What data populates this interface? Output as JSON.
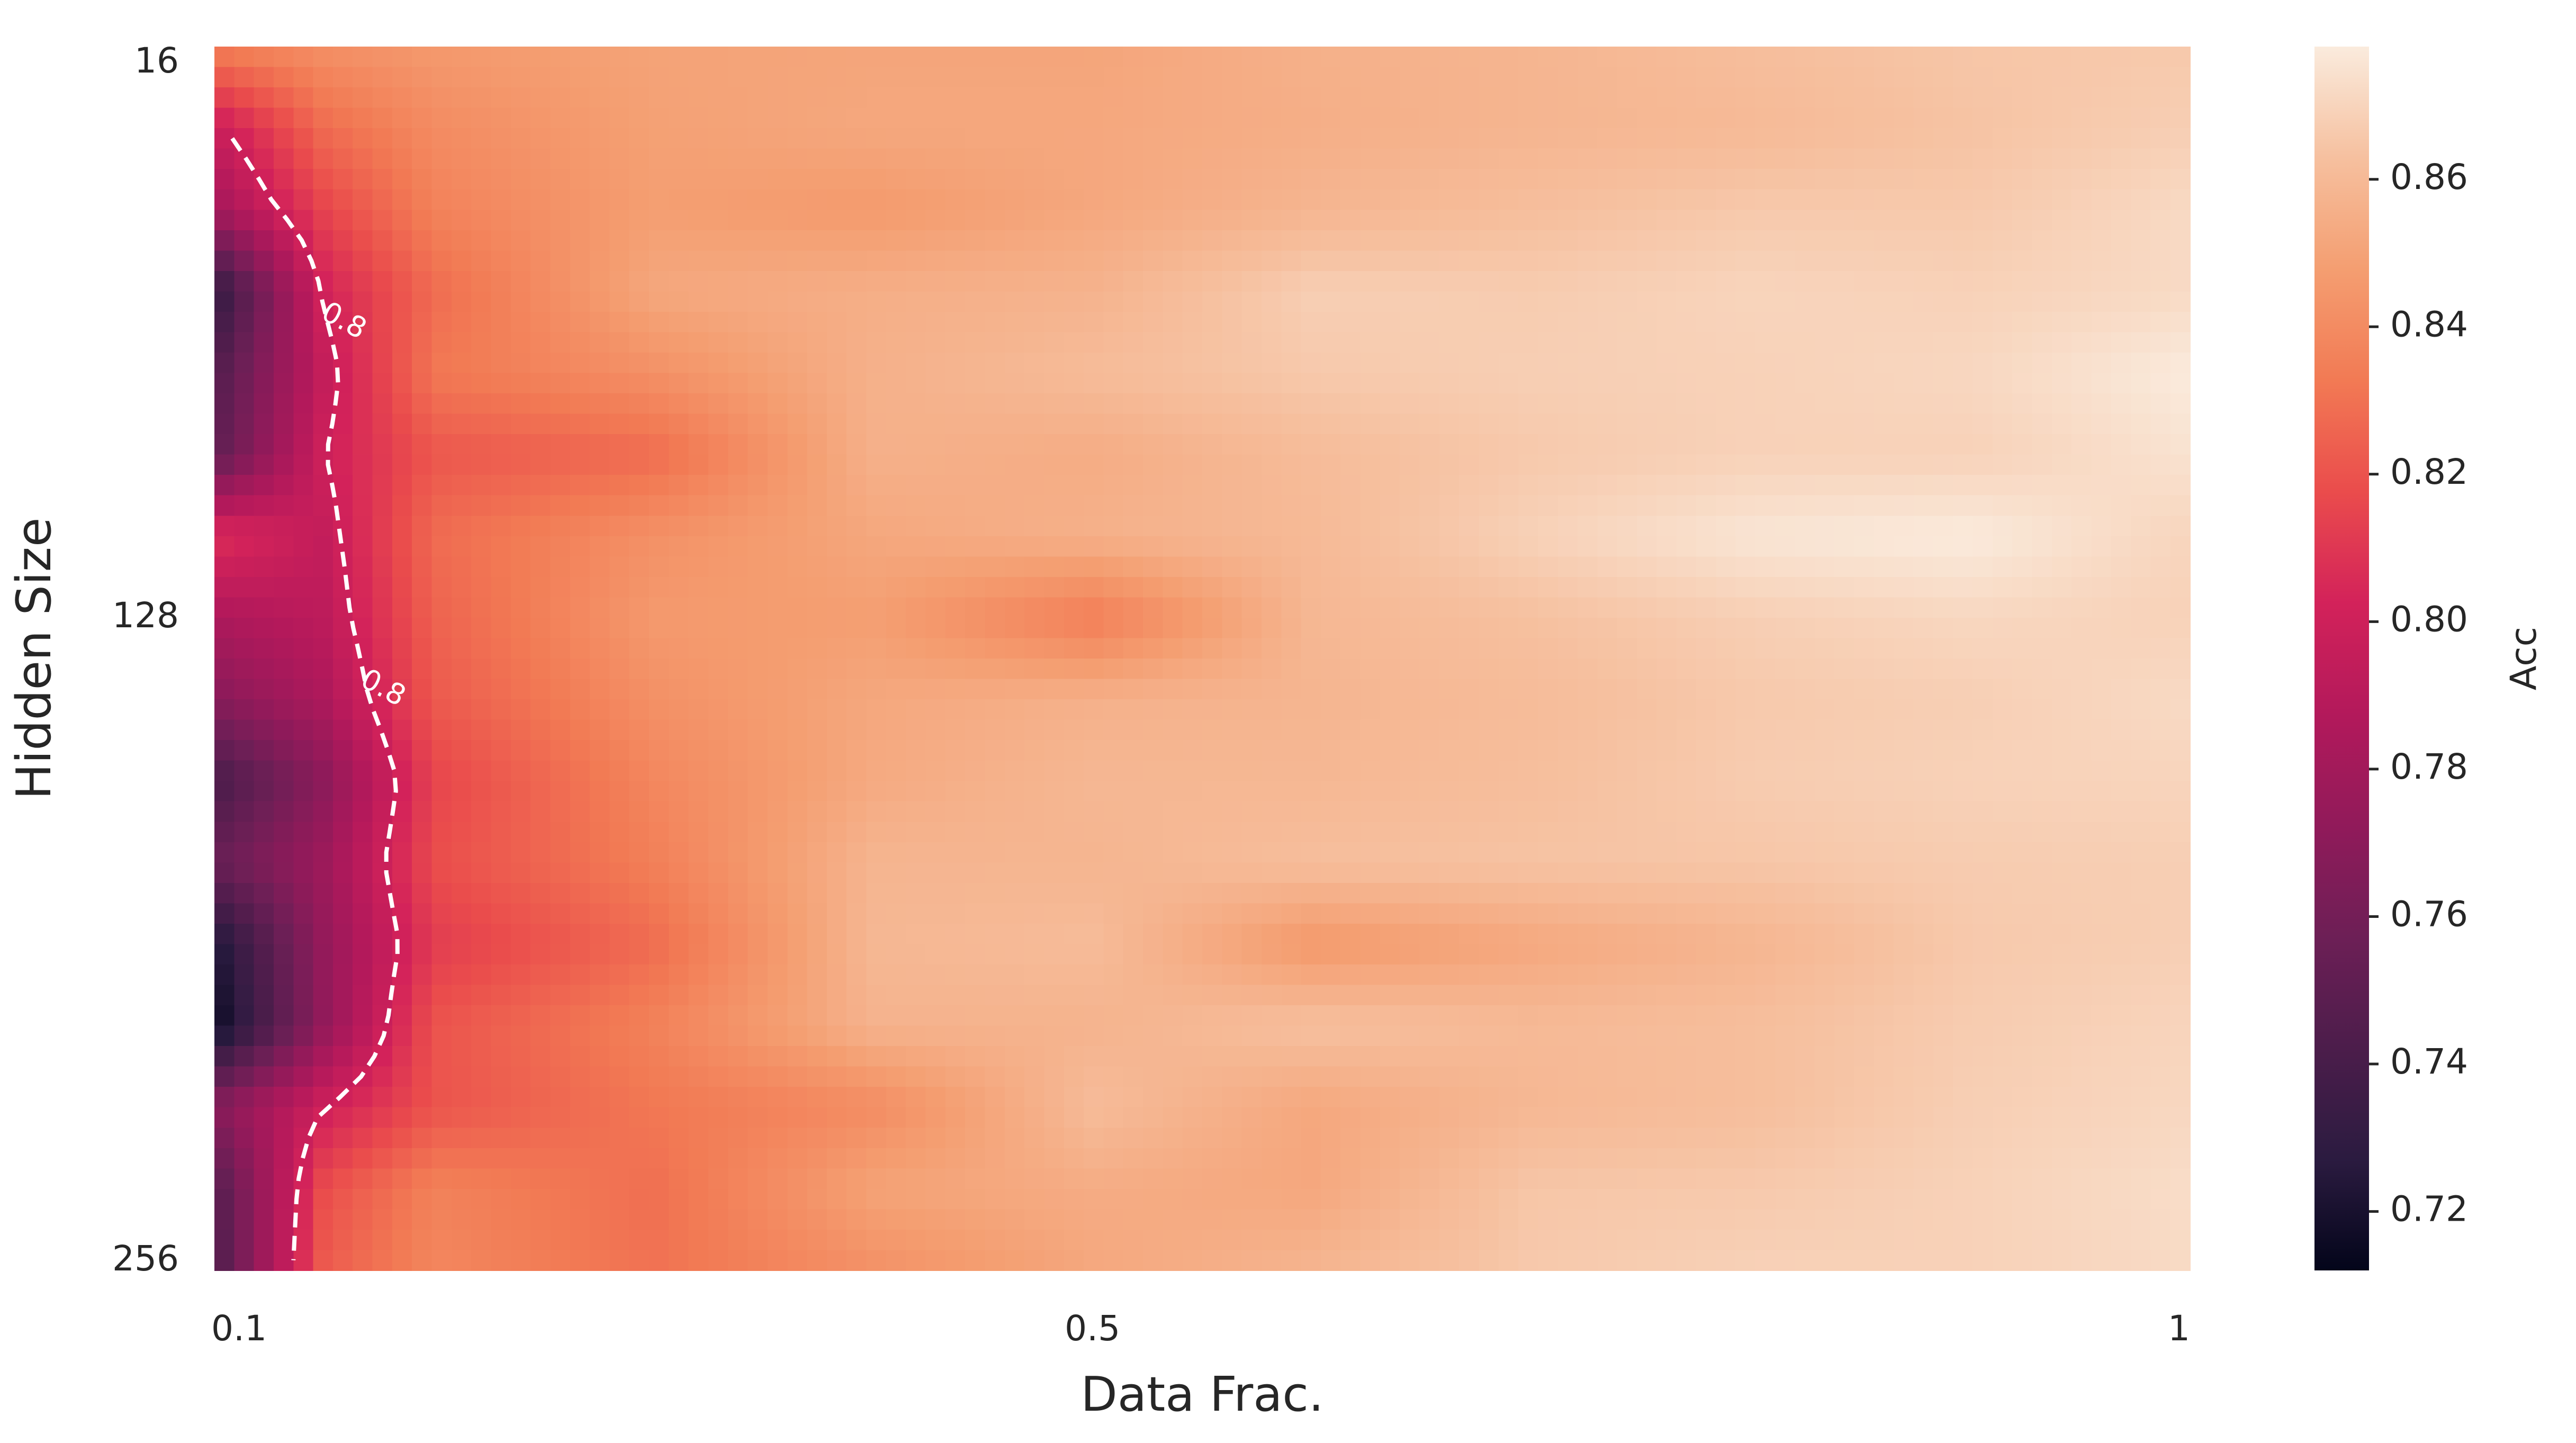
{
  "chart_data": {
    "type": "heatmap",
    "xlabel": "Data Frac.",
    "ylabel": "Hidden Size",
    "colorbar_label": "Acc",
    "x_ticks": [
      {
        "label": "0.1",
        "value": 0.1
      },
      {
        "label": "0.5",
        "value": 0.5
      },
      {
        "label": "1",
        "value": 1.0
      }
    ],
    "y_ticks": [
      {
        "label": "16",
        "value": 16
      },
      {
        "label": "128",
        "value": 128
      },
      {
        "label": "256",
        "value": 256
      }
    ],
    "xlim": [
      0.1,
      1.0
    ],
    "ylim": [
      16,
      256
    ],
    "color_range": [
      0.712,
      0.878
    ],
    "colorbar_ticks": [
      "0.72",
      "0.74",
      "0.76",
      "0.78",
      "0.80",
      "0.82",
      "0.84",
      "0.86"
    ],
    "colormap": "rocket",
    "colormap_stops": [
      "#03051a",
      "#2b1b40",
      "#4c1d4b",
      "#6d1f56",
      "#911a5a",
      "#b3195b",
      "#d3225a",
      "#ea4c4c",
      "#f27a54",
      "#f49e71",
      "#f6c09f",
      "#faebdd"
    ],
    "x": [
      0.1,
      0.15,
      0.2,
      0.3,
      0.4,
      0.5,
      0.6,
      0.7,
      0.8,
      0.9,
      1.0
    ],
    "y": [
      16,
      32,
      48,
      64,
      80,
      96,
      112,
      128,
      144,
      160,
      176,
      192,
      208,
      224,
      240,
      256
    ],
    "values": [
      [
        0.835,
        0.842,
        0.846,
        0.85,
        0.851,
        0.851,
        0.856,
        0.858,
        0.862,
        0.865,
        0.866
      ],
      [
        0.797,
        0.828,
        0.84,
        0.849,
        0.852,
        0.852,
        0.855,
        0.858,
        0.86,
        0.864,
        0.868
      ],
      [
        0.78,
        0.815,
        0.836,
        0.848,
        0.846,
        0.852,
        0.858,
        0.862,
        0.866,
        0.866,
        0.872
      ],
      [
        0.728,
        0.802,
        0.828,
        0.852,
        0.855,
        0.857,
        0.868,
        0.867,
        0.87,
        0.869,
        0.872
      ],
      [
        0.745,
        0.795,
        0.832,
        0.842,
        0.856,
        0.861,
        0.866,
        0.868,
        0.869,
        0.871,
        0.878
      ],
      [
        0.75,
        0.8,
        0.821,
        0.828,
        0.856,
        0.854,
        0.861,
        0.866,
        0.869,
        0.869,
        0.875
      ],
      [
        0.808,
        0.795,
        0.828,
        0.842,
        0.852,
        0.856,
        0.86,
        0.869,
        0.876,
        0.878,
        0.87
      ],
      [
        0.785,
        0.792,
        0.825,
        0.846,
        0.848,
        0.834,
        0.859,
        0.863,
        0.868,
        0.871,
        0.869
      ],
      [
        0.768,
        0.785,
        0.822,
        0.842,
        0.852,
        0.856,
        0.858,
        0.861,
        0.866,
        0.868,
        0.872
      ],
      [
        0.74,
        0.77,
        0.815,
        0.838,
        0.853,
        0.859,
        0.859,
        0.862,
        0.867,
        0.869,
        0.87
      ],
      [
        0.755,
        0.778,
        0.818,
        0.835,
        0.858,
        0.858,
        0.862,
        0.864,
        0.865,
        0.867,
        0.868
      ],
      [
        0.722,
        0.774,
        0.812,
        0.828,
        0.859,
        0.861,
        0.845,
        0.852,
        0.858,
        0.866,
        0.868
      ],
      [
        0.714,
        0.773,
        0.82,
        0.836,
        0.857,
        0.857,
        0.863,
        0.86,
        0.862,
        0.867,
        0.87
      ],
      [
        0.768,
        0.8,
        0.82,
        0.832,
        0.84,
        0.861,
        0.852,
        0.859,
        0.862,
        0.868,
        0.871
      ],
      [
        0.745,
        0.818,
        0.836,
        0.829,
        0.85,
        0.854,
        0.852,
        0.865,
        0.866,
        0.869,
        0.873
      ],
      [
        0.742,
        0.823,
        0.838,
        0.83,
        0.842,
        0.852,
        0.858,
        0.866,
        0.869,
        0.869,
        0.872
      ]
    ],
    "contour": {
      "level": 0.8,
      "label": "0.8",
      "color": "#ffffff",
      "style": "dashed"
    }
  }
}
